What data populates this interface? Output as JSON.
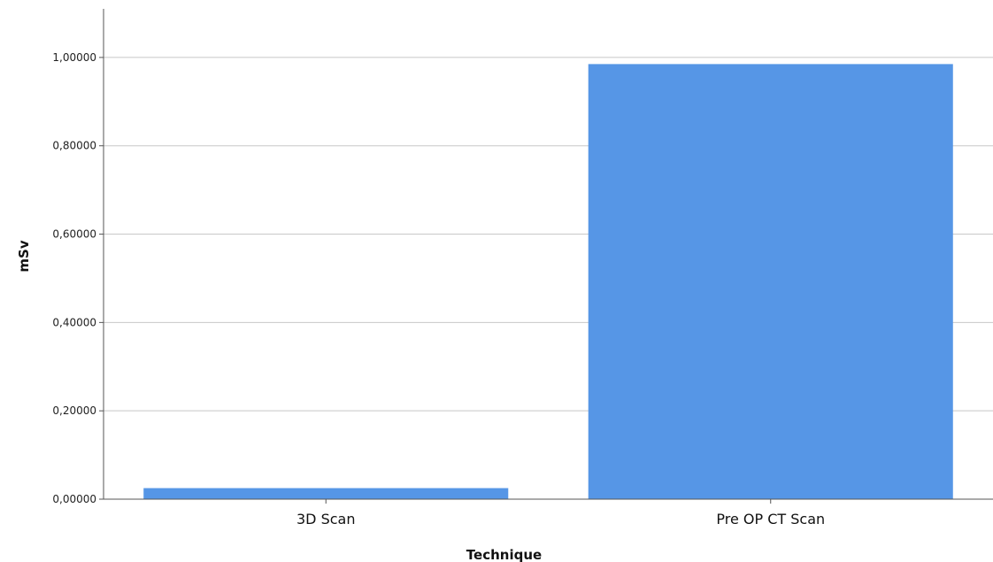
{
  "chart_data": {
    "type": "bar",
    "categories": [
      "3D Scan",
      "Pre OP CT Scan"
    ],
    "values": [
      0.025,
      0.985
    ],
    "title": "",
    "xlabel": "Technique",
    "ylabel": "mSv",
    "ylim": [
      0,
      1.1
    ],
    "yticks": [
      0,
      0.2,
      0.4,
      0.6,
      0.8,
      1.0
    ],
    "ytick_labels": [
      "0,00000",
      "0,20000",
      "0,40000",
      "0,60000",
      "0,80000",
      "1,00000"
    ],
    "grid": true,
    "legend": "none",
    "bar_color": "#5696e6"
  }
}
